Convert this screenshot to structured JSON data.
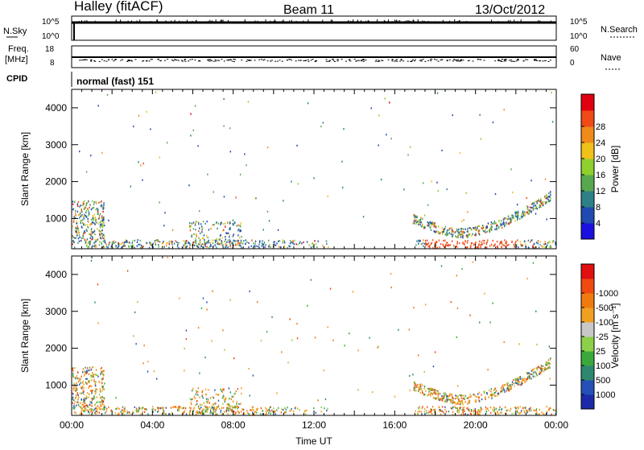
{
  "header": {
    "station": "Halley (fitACF)",
    "beam": "Beam 11",
    "date": "13/Oct/2012"
  },
  "top_panels": {
    "nsky_label": "N.Sky",
    "nsky_ticks": [
      "10^5",
      "10^0"
    ],
    "nsearch_label": "N.Search",
    "nsearch_ticks": [
      "10^5",
      "10^0"
    ],
    "freq_label_1": "Freq.",
    "freq_label_2": "[MHz]",
    "freq_ticks": [
      "18",
      "8"
    ],
    "nave_label": "Nave",
    "nave_ticks": [
      "60",
      "0"
    ],
    "cpid_label": "CPID",
    "cpid_text": "normal (fast) 151"
  },
  "chart_data": [
    {
      "type": "heatmap",
      "name": "power-panel",
      "ylabel": "Slant Range [km]",
      "yticks": [
        "1000",
        "2000",
        "3000",
        "4000"
      ],
      "ylim": [
        180,
        4500
      ],
      "xlim": [
        0,
        24
      ],
      "colorbar": {
        "label": "Power [dB]",
        "ticks": [
          "4",
          "8",
          "12",
          "16",
          "20",
          "24",
          "28"
        ],
        "colors": [
          "#1a10e0",
          "#1f4bb0",
          "#2e7f86",
          "#58a84f",
          "#8fcf2e",
          "#f0c11a",
          "#f08a1a",
          "#f04a16",
          "#e00010"
        ]
      }
    },
    {
      "type": "heatmap",
      "name": "velocity-panel",
      "ylabel": "Slant Range [km]",
      "yticks": [
        "1000",
        "2000",
        "3000",
        "4000"
      ],
      "ylim": [
        180,
        4500
      ],
      "xlim": [
        0,
        24
      ],
      "xlabel": "Time UT",
      "xticks": [
        "00:00",
        "04:00",
        "08:00",
        "12:00",
        "16:00",
        "20:00",
        "00:00"
      ],
      "colorbar": {
        "label": "Velocity [m s⁻¹]",
        "ticks": [
          "1000",
          "500",
          "100",
          "25",
          "-25",
          "-100",
          "-500",
          "-1000"
        ],
        "colors": [
          "#1c2aa8",
          "#2550b8",
          "#2e8870",
          "#3aa83a",
          "#8cd04a",
          "#c8c8c8",
          "#f0a020",
          "#f07a10",
          "#f04a10",
          "#e01010"
        ]
      }
    }
  ]
}
